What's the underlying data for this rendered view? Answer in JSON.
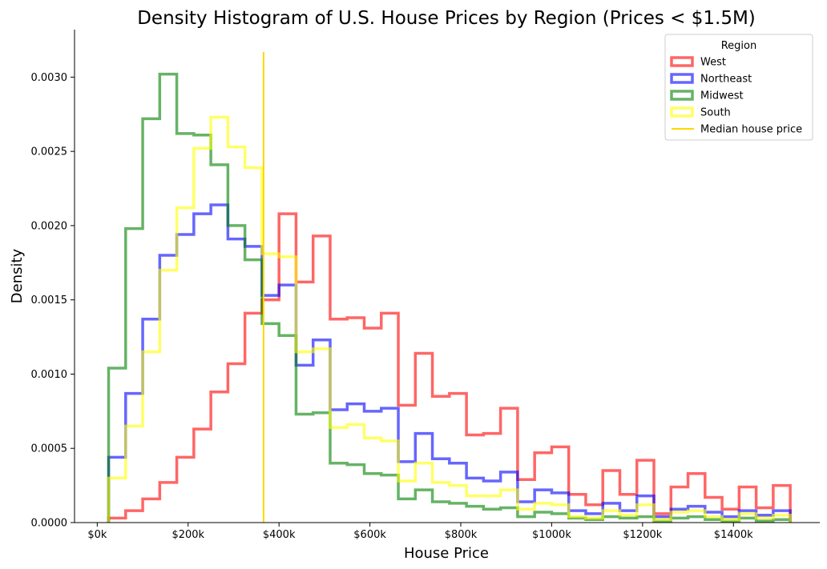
{
  "chart_data": {
    "type": "histogram",
    "title": "Density Histogram of U.S. House Prices by Region (Prices < $1.5M)",
    "xlabel": "House Price",
    "ylabel": "Density",
    "xlim": [
      -50000,
      1590000
    ],
    "ylim": [
      0,
      0.00332
    ],
    "x_ticks": [
      0,
      200000,
      400000,
      600000,
      800000,
      1000000,
      1200000,
      1400000
    ],
    "x_tick_labels": [
      "$0k",
      "$200k",
      "$400k",
      "$600k",
      "$800k",
      "$1000k",
      "$1200k",
      "$1400k"
    ],
    "y_ticks": [
      0,
      0.0005,
      0.001,
      0.0015,
      0.002,
      0.0025,
      0.003
    ],
    "y_tick_labels": [
      "0.0000",
      "0.0005",
      "0.0010",
      "0.0015",
      "0.0020",
      "0.0025",
      "0.0030"
    ],
    "bin_start": 25000,
    "bin_width": 37500,
    "series": [
      {
        "name": "West",
        "color": "#ff0000",
        "values": [
          3e-05,
          8e-05,
          0.00016,
          0.00027,
          0.00044,
          0.00063,
          0.00088,
          0.00107,
          0.00141,
          0.0015,
          0.00208,
          0.00162,
          0.00193,
          0.00137,
          0.00138,
          0.00131,
          0.00141,
          0.00079,
          0.00114,
          0.00085,
          0.00087,
          0.00059,
          0.0006,
          0.00077,
          0.00029,
          0.00047,
          0.00051,
          0.00019,
          0.00012,
          0.00035,
          0.00019,
          0.00042,
          6e-05,
          0.00024,
          0.00033,
          0.00017,
          9e-05,
          0.00024,
          0.0001,
          0.00025
        ]
      },
      {
        "name": "Northeast",
        "color": "#0000ff",
        "values": [
          0.00044,
          0.00087,
          0.00137,
          0.0018,
          0.00194,
          0.00208,
          0.00214,
          0.00191,
          0.00186,
          0.00153,
          0.0016,
          0.00106,
          0.00123,
          0.00076,
          0.0008,
          0.00075,
          0.00077,
          0.00041,
          0.0006,
          0.00043,
          0.0004,
          0.0003,
          0.00028,
          0.00034,
          0.00014,
          0.00022,
          0.0002,
          8e-05,
          6e-05,
          0.00013,
          8e-05,
          0.00018,
          4e-05,
          9e-05,
          0.00011,
          7e-05,
          4e-05,
          8e-05,
          5e-05,
          8e-05
        ]
      },
      {
        "name": "Midwest",
        "color": "#008000",
        "values": [
          0.00104,
          0.00198,
          0.00272,
          0.00302,
          0.00262,
          0.00261,
          0.00241,
          0.002,
          0.00177,
          0.00134,
          0.00126,
          0.00073,
          0.00074,
          0.0004,
          0.00039,
          0.00033,
          0.00032,
          0.00016,
          0.00022,
          0.00014,
          0.00013,
          0.00011,
          9e-05,
          0.0001,
          4e-05,
          7e-05,
          6e-05,
          3e-05,
          2e-05,
          4e-05,
          3e-05,
          4e-05,
          1e-05,
          3e-05,
          4e-05,
          2e-05,
          1e-05,
          3e-05,
          1e-05,
          2e-05
        ]
      },
      {
        "name": "South",
        "color": "#ffff00",
        "values": [
          0.0003,
          0.00065,
          0.00115,
          0.0017,
          0.00212,
          0.00252,
          0.00273,
          0.00253,
          0.00239,
          0.00181,
          0.00179,
          0.00115,
          0.00117,
          0.00064,
          0.00066,
          0.00057,
          0.00055,
          0.00028,
          0.0004,
          0.00027,
          0.00025,
          0.00018,
          0.00018,
          0.00022,
          9e-05,
          0.00013,
          0.00012,
          4e-05,
          3e-05,
          8e-05,
          5e-05,
          0.00012,
          2e-05,
          7e-05,
          8e-05,
          4e-05,
          2e-05,
          6e-05,
          3e-05,
          5e-05
        ]
      }
    ],
    "reference_line": {
      "name": "Median house price",
      "x": 366000,
      "y_top": 0.00317,
      "color": "#ffd700"
    },
    "legend": {
      "title": "Region",
      "position": "top-right"
    },
    "grid": false
  }
}
